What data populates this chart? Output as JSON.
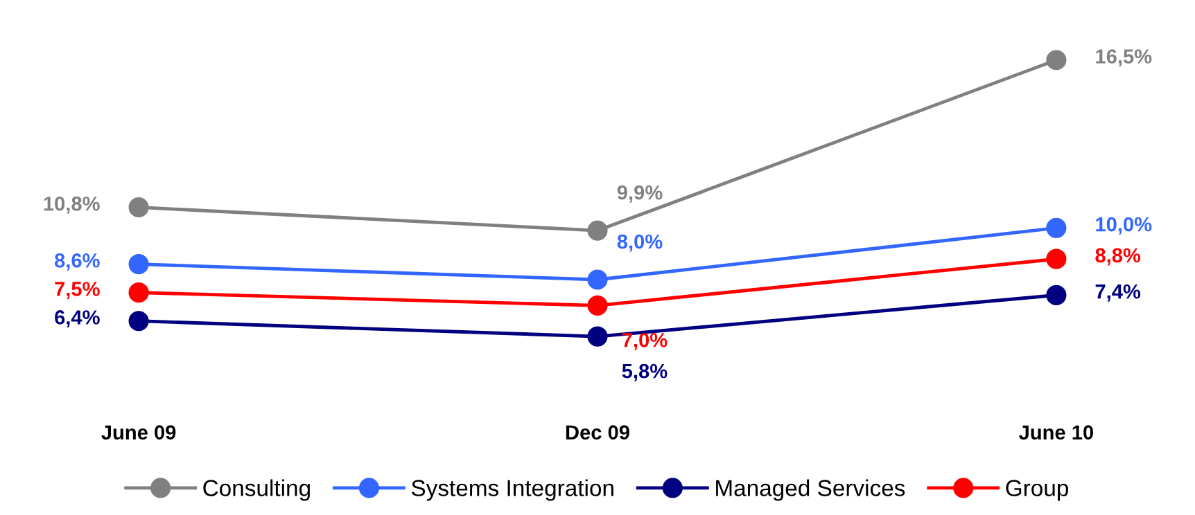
{
  "chart_data": {
    "type": "line",
    "categories": [
      "June 09",
      "Dec 09",
      "June 10"
    ],
    "series": [
      {
        "name": "Consulting",
        "color": "#808080",
        "values": [
          10.8,
          9.9,
          16.5
        ],
        "value_labels": [
          "10,8%",
          "9,9%",
          "16,5%"
        ]
      },
      {
        "name": "Systems Integration",
        "color": "#3366ff",
        "values": [
          8.6,
          8.0,
          10.0
        ],
        "value_labels": [
          "8,6%",
          "8,0%",
          "10,0%"
        ]
      },
      {
        "name": "Managed Services",
        "color": "#000080",
        "values": [
          6.4,
          5.8,
          7.4
        ],
        "value_labels": [
          "6,4%",
          "5,8%",
          "7,4%"
        ]
      },
      {
        "name": "Group",
        "color": "#ff0000",
        "values": [
          7.5,
          7.0,
          8.8
        ],
        "value_labels": [
          "7,5%",
          "7,0%",
          "8,8%"
        ]
      }
    ],
    "marker": "circle",
    "line_style": "solid",
    "legend": "bottom",
    "grid": false,
    "tick_labels": "x"
  }
}
